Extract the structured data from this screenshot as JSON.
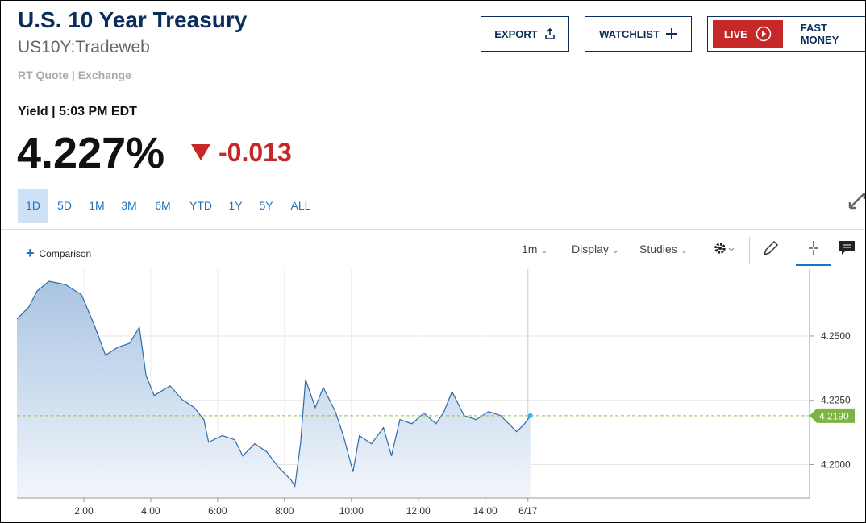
{
  "header": {
    "title": "U.S. 10 Year Treasury",
    "symbol": "US10Y:Tradeweb",
    "source": "RT Quote | Exchange"
  },
  "buttons": {
    "export": "EXPORT",
    "watchlist": "WATCHLIST",
    "live": "LIVE",
    "show": "FAST MONEY"
  },
  "quote": {
    "label": "Yield | 5:03 PM EDT",
    "price": "4.227%",
    "change": "-0.013"
  },
  "ranges": [
    "1D",
    "5D",
    "1M",
    "3M",
    "6M",
    "YTD",
    "1Y",
    "5Y",
    "ALL"
  ],
  "toolbar": {
    "comparison": "Comparison",
    "interval": "1m",
    "display": "Display",
    "studies": "Studies"
  },
  "chart_data": {
    "type": "line",
    "x": [
      0.0,
      0.36,
      0.6,
      0.96,
      1.45,
      1.93,
      2.29,
      2.65,
      3.01,
      3.37,
      3.66,
      3.86,
      4.1,
      4.58,
      4.94,
      5.3,
      5.59,
      5.73,
      6.14,
      6.51,
      6.75,
      7.11,
      7.47,
      7.83,
      8.19,
      8.31,
      8.48,
      8.63,
      8.92,
      9.16,
      9.52,
      9.76,
      10.05,
      10.24,
      10.6,
      10.96,
      11.2,
      11.45,
      11.81,
      12.17,
      12.53,
      12.77,
      13.01,
      13.37,
      13.73,
      14.1,
      14.46,
      14.94,
      15.18,
      15.35
    ],
    "series": [
      {
        "name": "US10Y",
        "color": "#2f6aa8",
        "values": [
          4.2566,
          4.2613,
          4.2675,
          4.2713,
          4.27,
          4.266,
          4.255,
          4.2425,
          4.2456,
          4.2472,
          4.2534,
          4.2347,
          4.2269,
          4.2306,
          4.2253,
          4.2222,
          4.2175,
          4.2087,
          4.2113,
          4.2097,
          4.2034,
          4.2081,
          4.205,
          4.1988,
          4.1941,
          4.1916,
          4.2081,
          4.2331,
          4.2222,
          4.23,
          4.2206,
          4.2113,
          4.1972,
          4.2113,
          4.2081,
          4.2144,
          4.2034,
          4.2175,
          4.2159,
          4.22,
          4.2159,
          4.2206,
          4.2284,
          4.2191,
          4.2175,
          4.2206,
          4.2191,
          4.2128,
          4.2159,
          4.219
        ]
      }
    ],
    "xlim": [
      0,
      23.7
    ],
    "ylim": [
      4.187,
      4.276
    ],
    "xticks": [
      {
        "value": 2,
        "label": "2:00"
      },
      {
        "value": 4,
        "label": "4:00"
      },
      {
        "value": 6,
        "label": "6:00"
      },
      {
        "value": 8,
        "label": "8:00"
      },
      {
        "value": 10,
        "label": "10:00"
      },
      {
        "value": 12,
        "label": "12:00"
      },
      {
        "value": 14,
        "label": "14:00"
      },
      {
        "value": 15.28,
        "label": "6/17"
      }
    ],
    "yticks": [
      {
        "value": 4.25,
        "label": "4.2500"
      },
      {
        "value": 4.225,
        "label": "4.2250"
      },
      {
        "value": 4.2,
        "label": "4.2000"
      }
    ],
    "last": {
      "value": 4.219,
      "label": "4.2190"
    },
    "grid": true
  }
}
